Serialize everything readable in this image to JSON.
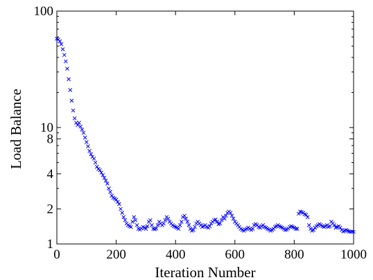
{
  "chart_data": {
    "type": "scatter",
    "title": "",
    "xlabel": "Iteration Number",
    "ylabel": "Load Balance",
    "xlim": [
      0,
      1000
    ],
    "ylim": [
      1,
      100
    ],
    "y_scale": "log",
    "grid": false,
    "legend": "none",
    "marker": "x",
    "x_ticks": [
      0,
      200,
      400,
      600,
      800,
      1000
    ],
    "x_tick_labels": [
      "0",
      "200",
      "400",
      "600",
      "800",
      "1000"
    ],
    "y_ticks": [
      1,
      2,
      4,
      8,
      10,
      100
    ],
    "y_tick_labels": [
      "1",
      "2",
      "4",
      "8",
      "10",
      "100"
    ],
    "series_color": "#0000ff",
    "series": [
      {
        "x": [
          0,
          5,
          10,
          15,
          20,
          25,
          30,
          35,
          40,
          45,
          50,
          55,
          60,
          65,
          70,
          75,
          80,
          85,
          90,
          95,
          100,
          105,
          110,
          115,
          120,
          125,
          130,
          135,
          140,
          145,
          150,
          155,
          160,
          165,
          170,
          175,
          180,
          185,
          190,
          195,
          200,
          205,
          210,
          215,
          220,
          225,
          230,
          235,
          240,
          245,
          250,
          255,
          260,
          265,
          270,
          275,
          280,
          285,
          290,
          295,
          300,
          305,
          310,
          315,
          320,
          325,
          330,
          335,
          340,
          345,
          350,
          355,
          360,
          365,
          370,
          375,
          380,
          385,
          390,
          395,
          400,
          405,
          410,
          415,
          420,
          425,
          430,
          435,
          440,
          445,
          450,
          455,
          460,
          465,
          470,
          475,
          480,
          485,
          490,
          495,
          500,
          505,
          510,
          515,
          520,
          525,
          530,
          535,
          540,
          545,
          550,
          555,
          560,
          565,
          570,
          575,
          580,
          585,
          590,
          595,
          600,
          605,
          610,
          615,
          620,
          625,
          630,
          635,
          640,
          645,
          650,
          655,
          660,
          665,
          670,
          675,
          680,
          685,
          690,
          695,
          700,
          705,
          710,
          715,
          720,
          725,
          730,
          735,
          740,
          745,
          750,
          755,
          760,
          765,
          770,
          775,
          780,
          785,
          790,
          795,
          800,
          805,
          810,
          815,
          820,
          825,
          830,
          835,
          840,
          845,
          850,
          855,
          860,
          865,
          870,
          875,
          880,
          885,
          890,
          895,
          900,
          905,
          910,
          915,
          920,
          925,
          930,
          935,
          940,
          945,
          950,
          955,
          960,
          965,
          970,
          975,
          980,
          985,
          990,
          995,
          1000
        ],
        "y": [
          58.0,
          57.0,
          55.0,
          52.0,
          47.0,
          42.0,
          37.0,
          32.0,
          26.0,
          21.0,
          17.0,
          14.0,
          12.0,
          11.0,
          10.5,
          11.0,
          10.2,
          9.6,
          9.0,
          8.2,
          7.5,
          6.9,
          6.3,
          5.9,
          5.6,
          5.4,
          5.0,
          4.6,
          4.4,
          4.3,
          4.1,
          3.9,
          3.7,
          3.5,
          3.3,
          3.0,
          2.8,
          2.6,
          2.5,
          2.45,
          2.4,
          2.3,
          2.2,
          2.0,
          1.85,
          1.7,
          1.6,
          1.5,
          1.45,
          1.42,
          1.4,
          1.55,
          1.7,
          1.6,
          1.45,
          1.35,
          1.33,
          1.36,
          1.4,
          1.38,
          1.35,
          1.42,
          1.55,
          1.6,
          1.45,
          1.35,
          1.34,
          1.36,
          1.45,
          1.55,
          1.5,
          1.45,
          1.5,
          1.6,
          1.7,
          1.65,
          1.55,
          1.5,
          1.45,
          1.42,
          1.4,
          1.38,
          1.35,
          1.45,
          1.55,
          1.7,
          1.75,
          1.65,
          1.55,
          1.45,
          1.35,
          1.3,
          1.32,
          1.4,
          1.5,
          1.55,
          1.5,
          1.45,
          1.4,
          1.42,
          1.45,
          1.4,
          1.38,
          1.42,
          1.5,
          1.55,
          1.6,
          1.62,
          1.55,
          1.48,
          1.5,
          1.6,
          1.7,
          1.65,
          1.75,
          1.85,
          1.9,
          1.85,
          1.75,
          1.65,
          1.55,
          1.5,
          1.45,
          1.4,
          1.35,
          1.32,
          1.3,
          1.33,
          1.35,
          1.38,
          1.35,
          1.32,
          1.35,
          1.45,
          1.48,
          1.45,
          1.4,
          1.38,
          1.42,
          1.45,
          1.4,
          1.38,
          1.35,
          1.33,
          1.3,
          1.32,
          1.35,
          1.4,
          1.42,
          1.45,
          1.42,
          1.4,
          1.38,
          1.35,
          1.32,
          1.33,
          1.36,
          1.4,
          1.42,
          1.4,
          1.38,
          1.35,
          1.35,
          1.82,
          1.9,
          1.88,
          1.85,
          1.8,
          1.78,
          1.7,
          1.45,
          1.35,
          1.3,
          1.32,
          1.38,
          1.42,
          1.45,
          1.48,
          1.45,
          1.42,
          1.4,
          1.42,
          1.45,
          1.4,
          1.42,
          1.55,
          1.5,
          1.45,
          1.38,
          1.4,
          1.42,
          1.38,
          1.32,
          1.28,
          1.3,
          1.32,
          1.3,
          1.28,
          1.27,
          1.28,
          1.27
        ]
      }
    ]
  }
}
